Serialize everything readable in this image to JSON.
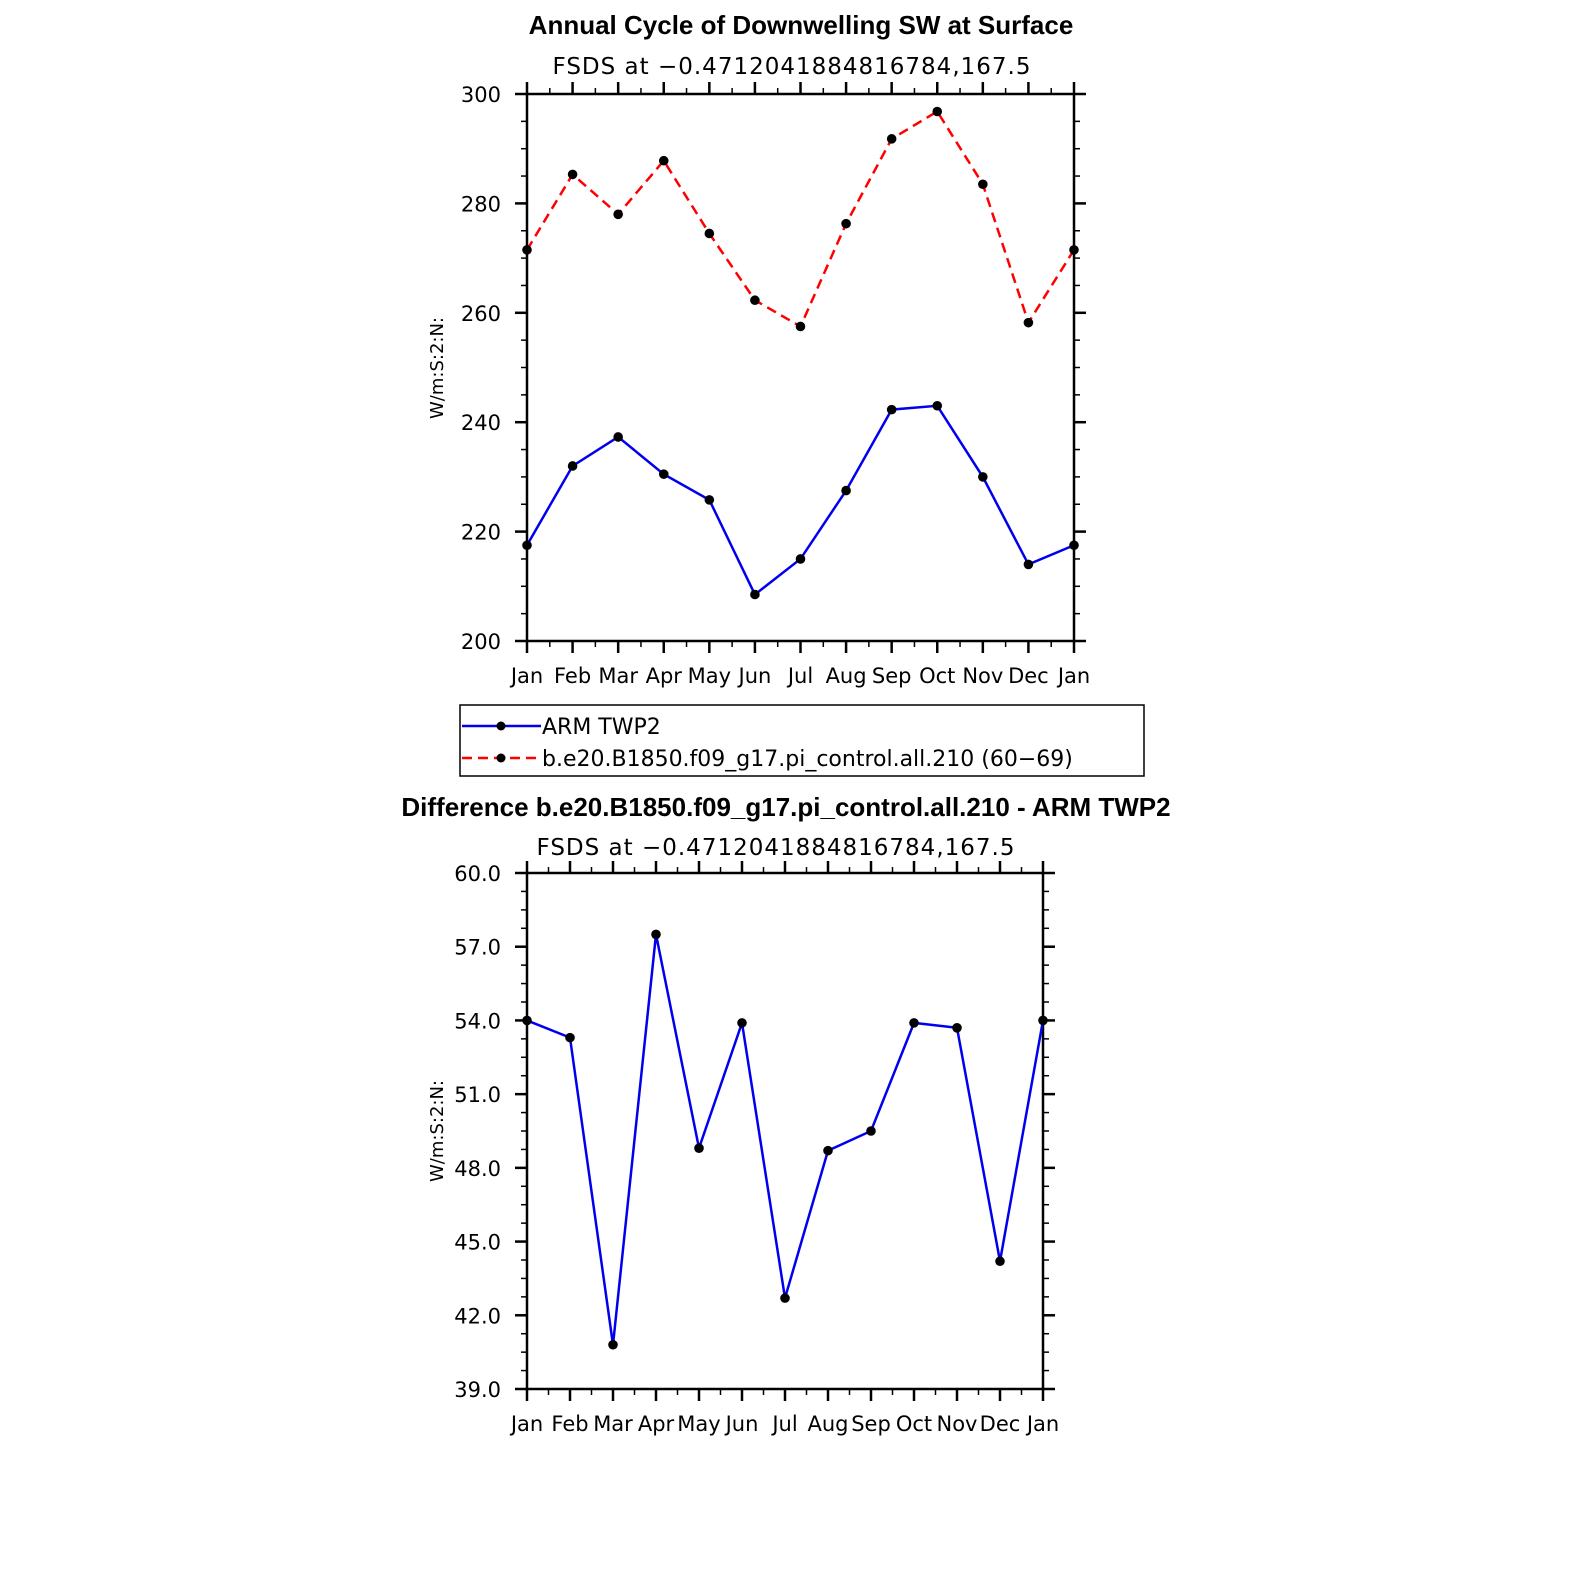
{
  "chart_data": [
    {
      "type": "line",
      "title": "Annual Cycle of Downwelling SW at Surface",
      "subtitle": "FSDS at −0.4712041884816784,167.5",
      "ylabel": "W/m:S:2:N:",
      "xlabel": "",
      "categories": [
        "Jan",
        "Feb",
        "Mar",
        "Apr",
        "May",
        "Jun",
        "Jul",
        "Aug",
        "Sep",
        "Oct",
        "Nov",
        "Dec",
        "Jan"
      ],
      "ylim": [
        200,
        300
      ],
      "yticks": [
        "200",
        "220",
        "240",
        "260",
        "280",
        "300"
      ],
      "series": [
        {
          "name": "ARM TWP2",
          "color": "#0000ee",
          "dash": "solid",
          "values": [
            217.5,
            232,
            237.3,
            230.5,
            225.8,
            208.5,
            215,
            227.5,
            242.3,
            243,
            230,
            214,
            217.5
          ]
        },
        {
          "name": "b.e20.B1850.f09_g17.pi_control.all.210 (60−69)",
          "color": "#ff0000",
          "dash": "dashed",
          "values": [
            271.5,
            285.3,
            278,
            287.8,
            274.5,
            262.3,
            257.5,
            276.3,
            291.8,
            296.8,
            283.5,
            258.2,
            271.5
          ]
        }
      ],
      "legend": "below"
    },
    {
      "type": "line",
      "title": "Difference b.e20.B1850.f09_g17.pi_control.all.210 - ARM TWP2",
      "subtitle": "FSDS at −0.4712041884816784,167.5",
      "ylabel": "W/m:S:2:N:",
      "xlabel": "",
      "categories": [
        "Jan",
        "Feb",
        "Mar",
        "Apr",
        "May",
        "Jun",
        "Jul",
        "Aug",
        "Sep",
        "Oct",
        "Nov",
        "Dec",
        "Jan"
      ],
      "ylim": [
        39,
        60
      ],
      "yticks": [
        "39.0",
        "42.0",
        "45.0",
        "48.0",
        "51.0",
        "54.0",
        "57.0",
        "60.0"
      ],
      "series": [
        {
          "color": "#0000ee",
          "dash": "solid",
          "values": [
            54.0,
            53.3,
            40.8,
            57.5,
            48.8,
            53.9,
            42.7,
            48.7,
            49.5,
            53.9,
            53.7,
            44.2,
            54.0
          ]
        }
      ]
    }
  ]
}
